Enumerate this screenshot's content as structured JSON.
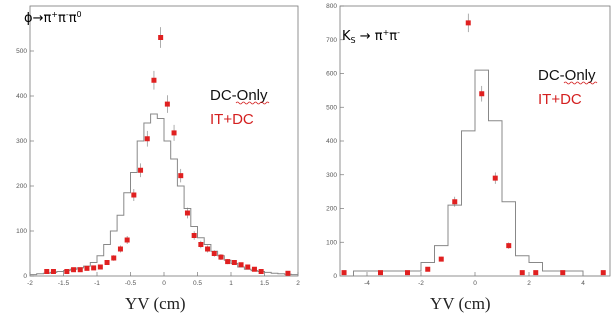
{
  "chart_data": [
    {
      "type": "histogram",
      "title": "ϕ→π⁺π⁻π⁰",
      "xlabel": "YV (cm)",
      "ylabel": "",
      "xlim": [
        -2,
        2
      ],
      "ylim": [
        0,
        600
      ],
      "xticks": [
        -2,
        -1.5,
        -1,
        -0.5,
        0,
        0.5,
        1,
        1.5,
        2
      ],
      "xtick_labels": [
        "-2",
        "-1.5",
        "-1",
        "-0.5",
        "0",
        "0.5",
        "1",
        "1.5",
        "2"
      ],
      "yticks": [
        0,
        100,
        200,
        300,
        400,
        500
      ],
      "ytick_labels": [
        "0",
        "100",
        "200",
        "300",
        "400",
        "500"
      ],
      "legend_position": "right",
      "series": [
        {
          "name": "DC-Only",
          "style": "histogram",
          "color": "#888888",
          "bin_edges": [
            -2,
            -1.9,
            -1.8,
            -1.7,
            -1.6,
            -1.5,
            -1.4,
            -1.3,
            -1.2,
            -1.1,
            -1.0,
            -0.9,
            -0.8,
            -0.7,
            -0.6,
            -0.5,
            -0.4,
            -0.3,
            -0.2,
            -0.1,
            0,
            0.1,
            0.2,
            0.3,
            0.4,
            0.5,
            0.6,
            0.7,
            0.8,
            0.9,
            1.0,
            1.1,
            1.2,
            1.3,
            1.4,
            1.5,
            1.6,
            1.7,
            1.8,
            1.9,
            2.0
          ],
          "values": [
            3,
            5,
            6,
            8,
            10,
            12,
            15,
            18,
            22,
            30,
            45,
            70,
            100,
            135,
            185,
            230,
            300,
            340,
            360,
            350,
            300,
            260,
            200,
            150,
            110,
            85,
            70,
            55,
            45,
            35,
            28,
            20,
            15,
            12,
            10,
            8,
            6,
            5,
            4,
            3
          ]
        },
        {
          "name": "IT+DC",
          "style": "points",
          "color": "#e02020",
          "x": [
            -1.75,
            -1.65,
            -1.45,
            -1.35,
            -1.25,
            -1.15,
            -1.05,
            -0.95,
            -0.85,
            -0.75,
            -0.65,
            -0.55,
            -0.45,
            -0.35,
            -0.25,
            -0.15,
            -0.05,
            0.05,
            0.15,
            0.25,
            0.35,
            0.45,
            0.55,
            0.65,
            0.75,
            0.85,
            0.95,
            1.05,
            1.15,
            1.25,
            1.35,
            1.45,
            1.85
          ],
          "y": [
            10,
            10,
            10,
            14,
            14,
            17,
            18,
            20,
            30,
            40,
            60,
            80,
            180,
            235,
            305,
            435,
            530,
            382,
            318,
            223,
            140,
            90,
            70,
            60,
            50,
            42,
            32,
            30,
            25,
            20,
            15,
            10,
            6
          ]
        }
      ]
    },
    {
      "type": "histogram",
      "title": "KS → π⁺π⁻",
      "xlabel": "YV (cm)",
      "ylabel": "",
      "xlim": [
        -5,
        5
      ],
      "ylim": [
        0,
        800
      ],
      "xticks": [
        -4,
        -2,
        0,
        2,
        4
      ],
      "xtick_labels": [
        "-4",
        "-2",
        "0",
        "2",
        "4"
      ],
      "yticks": [
        0,
        100,
        200,
        300,
        400,
        500,
        600,
        700,
        800
      ],
      "ytick_labels": [
        "0",
        "100",
        "200",
        "300",
        "400",
        "500",
        "600",
        "700",
        "800"
      ],
      "legend_position": "right",
      "series": [
        {
          "name": "DC-Only",
          "style": "histogram",
          "color": "#888888",
          "bin_edges": [
            -5,
            -4.5,
            -4,
            -3.5,
            -3,
            -2.5,
            -2,
            -1.5,
            -1,
            -0.5,
            0,
            0.5,
            1,
            1.5,
            2,
            2.5,
            3,
            3.5,
            4,
            4.5,
            5
          ],
          "values": [
            0,
            15,
            15,
            15,
            15,
            15,
            40,
            90,
            210,
            430,
            610,
            460,
            220,
            60,
            40,
            15,
            15,
            15,
            0,
            0
          ]
        },
        {
          "name": "IT+DC",
          "style": "points",
          "color": "#e02020",
          "x": [
            -4.85,
            -3.5,
            -2.5,
            -1.75,
            -1.25,
            -0.75,
            -0.25,
            0.25,
            0.75,
            1.25,
            1.75,
            2.25,
            3.25,
            4.75
          ],
          "y": [
            10,
            10,
            10,
            20,
            50,
            220,
            750,
            540,
            290,
            90,
            10,
            10,
            10,
            10
          ]
        }
      ]
    }
  ],
  "labels": {
    "left_title_main": "ϕ→π",
    "left_title_rest": "π",
    "left_title_rest2": "π",
    "left_title_sup1": "+",
    "left_title_sup2": "-",
    "left_title_sup3": "0",
    "right_title_k": "K",
    "right_title_sub": "S",
    "right_title_arrow": " → π",
    "right_title_sup1": "+",
    "right_title_pi2": "π",
    "right_title_sup2": "-",
    "legend_dc": "DC-Only",
    "legend_it": "IT+DC",
    "xlabel_left": "YV (cm)",
    "xlabel_right": "YV (cm)"
  }
}
